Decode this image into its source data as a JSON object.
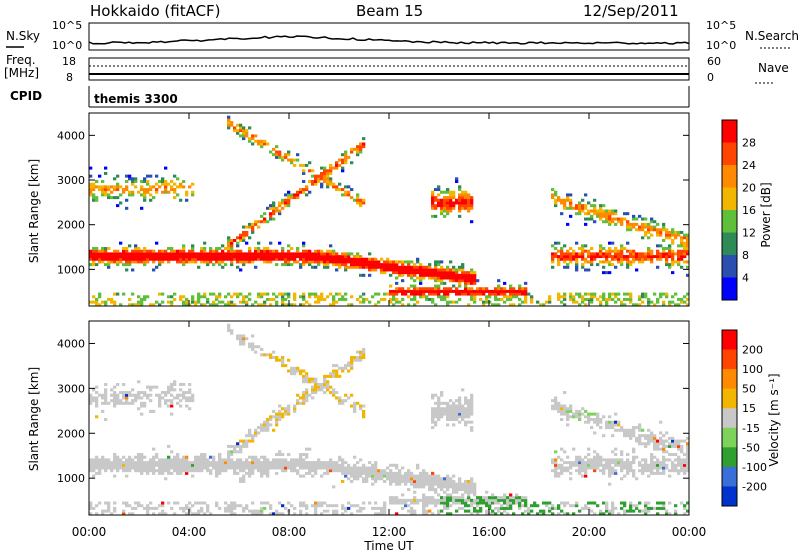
{
  "header": {
    "station": "Hokkaido (fitACF)",
    "beam": "Beam 15",
    "date": "12/Sep/2011"
  },
  "top_panels": {
    "nsky_label": "N.Sky",
    "nsearch_label": "N.Search",
    "count_ticks": [
      "10^5",
      "10^0"
    ],
    "freq_label": "Freq.",
    "freq_unit": "[MHz]",
    "freq_ticks": [
      "18",
      "8"
    ],
    "nave_label": "Nave",
    "nave_ticks": [
      "60",
      "0"
    ],
    "cpid_label": "CPID",
    "cpid_value": "themis 3300"
  },
  "chart_data": [
    {
      "type": "heatmap",
      "title": "",
      "xlabel": "Time UT",
      "ylabel": "Slant Range [km]",
      "xlim": [
        0,
        24
      ],
      "ylim": [
        180,
        4500
      ],
      "x_ticks": [
        "00:00",
        "04:00",
        "08:00",
        "12:00",
        "16:00",
        "20:00",
        "00:00"
      ],
      "y_ticks": [
        "1000",
        "2000",
        "3000",
        "4000"
      ],
      "colorbar_label": "Power [dB]",
      "colorbar_ticks": [
        "4",
        "8",
        "12",
        "16",
        "20",
        "24",
        "28"
      ],
      "colorbar_colors": [
        "#0000ff",
        "#2a4fb0",
        "#2e8b57",
        "#5fbf3a",
        "#f2b600",
        "#ff8a00",
        "#ff4500",
        "#ff0000"
      ],
      "features": [
        {
          "name": "main band",
          "t_start": 0,
          "t_end": 16,
          "range_start": 1150,
          "range_end": 1450
        },
        {
          "name": "upper echoes",
          "t_start": 0,
          "t_end": 4,
          "range_start": 2500,
          "range_end": 3100
        }
      ]
    },
    {
      "type": "heatmap",
      "title": "",
      "xlabel": "Time UT",
      "ylabel": "Slant Range [km]",
      "xlim": [
        0,
        24
      ],
      "ylim": [
        180,
        4500
      ],
      "x_ticks": [
        "00:00",
        "04:00",
        "08:00",
        "12:00",
        "16:00",
        "20:00",
        "00:00"
      ],
      "y_ticks": [
        "1000",
        "2000",
        "3000",
        "4000"
      ],
      "colorbar_label": "Velocity [m s⁻¹]",
      "colorbar_ticks": [
        "200",
        "100",
        "50",
        "15",
        "-15",
        "-50",
        "-100",
        "-200"
      ],
      "colorbar_colors": [
        "#0033cc",
        "#3a6fd8",
        "#2fa02f",
        "#7dd35a",
        "#c8c8c8",
        "#f2b600",
        "#ff8a00",
        "#ff4500",
        "#ff0000"
      ]
    }
  ]
}
